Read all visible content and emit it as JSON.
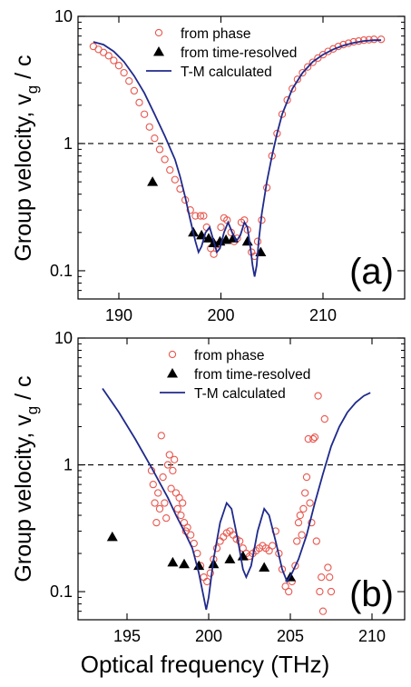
{
  "figure": {
    "ylabel_main": "Group velocity, v",
    "ylabel_sub": "g",
    "ylabel_tail": " / c",
    "xlabel": "Optical frequency (THz)"
  },
  "chart_data": [
    {
      "type": "scatter",
      "panel_label": "(a)",
      "xlim": [
        186,
        218
      ],
      "ylim": [
        0.06,
        10
      ],
      "yscale": "log",
      "x_ticks": [
        190,
        200,
        210
      ],
      "y_ticks": [
        0.1,
        1,
        10
      ],
      "y_tick_labels": [
        "0.1",
        "1",
        "10"
      ],
      "reference_line": 1,
      "legend": {
        "placement": "top-center",
        "entries": [
          "from phase",
          "from time-resolved",
          "T-M calculated"
        ]
      },
      "series": [
        {
          "name": "from phase",
          "marker": "open-circle",
          "color": "#e8584f",
          "points": [
            [
              187.5,
              5.8
            ],
            [
              188,
              5.5
            ],
            [
              188.5,
              5.2
            ],
            [
              189,
              4.9
            ],
            [
              189.5,
              4.5
            ],
            [
              190,
              4.1
            ],
            [
              190.5,
              3.6
            ],
            [
              191,
              3.1
            ],
            [
              191.5,
              2.6
            ],
            [
              192,
              2.1
            ],
            [
              192.5,
              1.7
            ],
            [
              193,
              1.35
            ],
            [
              193.5,
              1.1
            ],
            [
              194,
              0.9
            ],
            [
              194.5,
              0.75
            ],
            [
              195,
              0.62
            ],
            [
              195.5,
              0.52
            ],
            [
              196,
              0.44
            ],
            [
              196.5,
              0.36
            ],
            [
              197,
              0.3
            ],
            [
              197.5,
              0.27
            ],
            [
              198,
              0.27
            ],
            [
              198.3,
              0.27
            ],
            [
              198.6,
              0.22
            ],
            [
              199,
              0.15
            ],
            [
              199.3,
              0.135
            ],
            [
              199.6,
              0.16
            ],
            [
              200,
              0.22
            ],
            [
              200.3,
              0.26
            ],
            [
              200.6,
              0.25
            ],
            [
              201,
              0.2
            ],
            [
              201.3,
              0.17
            ],
            [
              201.6,
              0.18
            ],
            [
              202,
              0.24
            ],
            [
              202.3,
              0.25
            ],
            [
              202.6,
              0.21
            ],
            [
              203,
              0.14
            ],
            [
              203.3,
              0.13
            ],
            [
              203.6,
              0.17
            ],
            [
              204,
              0.25
            ],
            [
              204.5,
              0.45
            ],
            [
              205,
              0.8
            ],
            [
              205.5,
              1.2
            ],
            [
              206,
              1.7
            ],
            [
              206.5,
              2.2
            ],
            [
              207,
              2.7
            ],
            [
              207.5,
              3.2
            ],
            [
              208,
              3.6
            ],
            [
              208.5,
              4
            ],
            [
              209,
              4.35
            ],
            [
              209.5,
              4.7
            ],
            [
              210,
              5
            ],
            [
              210.5,
              5.3
            ],
            [
              211,
              5.55
            ],
            [
              211.5,
              5.8
            ],
            [
              212,
              6
            ],
            [
              212.5,
              6.15
            ],
            [
              213,
              6.3
            ],
            [
              213.5,
              6.4
            ],
            [
              214,
              6.5
            ],
            [
              214.5,
              6.55
            ],
            [
              215,
              6.6
            ],
            [
              215.7,
              6.6
            ]
          ]
        },
        {
          "name": "from time-resolved",
          "marker": "filled-triangle",
          "color": "#000000",
          "points": [
            [
              193.3,
              0.5
            ],
            [
              197.3,
              0.2
            ],
            [
              198.1,
              0.19
            ],
            [
              198.8,
              0.18
            ],
            [
              199.3,
              0.165
            ],
            [
              199.9,
              0.17
            ],
            [
              200.5,
              0.175
            ],
            [
              201.2,
              0.18
            ],
            [
              202.6,
              0.17
            ],
            [
              203.9,
              0.14
            ]
          ]
        },
        {
          "name": "T-M calculated",
          "marker": "line",
          "color": "#1f2a8c",
          "points": [
            [
              187.5,
              6.3
            ],
            [
              188.5,
              6
            ],
            [
              189.5,
              5.3
            ],
            [
              190.5,
              4.4
            ],
            [
              191.5,
              3.4
            ],
            [
              192.5,
              2.5
            ],
            [
              193.5,
              1.7
            ],
            [
              194.5,
              1.15
            ],
            [
              195.5,
              0.75
            ],
            [
              196,
              0.55
            ],
            [
              196.5,
              0.38
            ],
            [
              197,
              0.25
            ],
            [
              197.5,
              0.17
            ],
            [
              197.8,
              0.14
            ],
            [
              198.1,
              0.155
            ],
            [
              198.5,
              0.2
            ],
            [
              198.9,
              0.22
            ],
            [
              199.3,
              0.17
            ],
            [
              199.6,
              0.14
            ],
            [
              199.9,
              0.15
            ],
            [
              200.3,
              0.2
            ],
            [
              200.7,
              0.24
            ],
            [
              201.1,
              0.2
            ],
            [
              201.5,
              0.17
            ],
            [
              201.9,
              0.19
            ],
            [
              202.3,
              0.24
            ],
            [
              202.6,
              0.22
            ],
            [
              202.9,
              0.15
            ],
            [
              203.1,
              0.11
            ],
            [
              203.3,
              0.09
            ],
            [
              203.5,
              0.11
            ],
            [
              203.7,
              0.17
            ],
            [
              204,
              0.28
            ],
            [
              204.5,
              0.5
            ],
            [
              205,
              0.8
            ],
            [
              205.5,
              1.2
            ],
            [
              206,
              1.7
            ],
            [
              207,
              2.7
            ],
            [
              208,
              3.6
            ],
            [
              209,
              4.4
            ],
            [
              210,
              5
            ],
            [
              211,
              5.5
            ],
            [
              212,
              5.9
            ],
            [
              213,
              6.2
            ],
            [
              214,
              6.4
            ],
            [
              215,
              6.5
            ],
            [
              215.7,
              6.5
            ]
          ]
        }
      ]
    },
    {
      "type": "scatter",
      "panel_label": "(b)",
      "xlim": [
        192,
        212
      ],
      "ylim": [
        0.06,
        10
      ],
      "yscale": "log",
      "x_ticks": [
        195,
        200,
        205,
        210
      ],
      "y_ticks": [
        0.1,
        1,
        10
      ],
      "y_tick_labels": [
        "0.1",
        "1",
        "10"
      ],
      "reference_line": 1,
      "legend": {
        "placement": "top-center",
        "entries": [
          "from phase",
          "from time-resolved",
          "T-M calculated"
        ]
      },
      "series": [
        {
          "name": "from phase",
          "marker": "open-circle",
          "color": "#e8584f",
          "points": [
            [
              196.5,
              0.9
            ],
            [
              196.6,
              0.7
            ],
            [
              196.7,
              0.5
            ],
            [
              196.8,
              0.35
            ],
            [
              196.9,
              0.6
            ],
            [
              197,
              0.45
            ],
            [
              197.1,
              1.7
            ],
            [
              197.2,
              0.8
            ],
            [
              197.3,
              0.5
            ],
            [
              197.4,
              0.38
            ],
            [
              197.5,
              1.0
            ],
            [
              197.6,
              1.2
            ],
            [
              197.7,
              0.65
            ],
            [
              197.8,
              0.9
            ],
            [
              197.9,
              1.1
            ],
            [
              198,
              0.6
            ],
            [
              198.1,
              0.45
            ],
            [
              198.2,
              0.55
            ],
            [
              198.3,
              0.4
            ],
            [
              198.4,
              0.5
            ],
            [
              198.5,
              0.35
            ],
            [
              198.6,
              0.3
            ],
            [
              198.7,
              0.32
            ],
            [
              198.9,
              0.28
            ],
            [
              199.1,
              0.24
            ],
            [
              199.3,
              0.2
            ],
            [
              199.5,
              0.16
            ],
            [
              199.7,
              0.13
            ],
            [
              199.9,
              0.12
            ],
            [
              200.1,
              0.14
            ],
            [
              200.3,
              0.18
            ],
            [
              200.5,
              0.22
            ],
            [
              200.7,
              0.25
            ],
            [
              200.9,
              0.27
            ],
            [
              201.1,
              0.29
            ],
            [
              201.3,
              0.3
            ],
            [
              201.5,
              0.28
            ],
            [
              201.7,
              0.26
            ],
            [
              201.9,
              0.25
            ],
            [
              202.1,
              0.22
            ],
            [
              202.3,
              0.2
            ],
            [
              202.5,
              0.19
            ],
            [
              202.7,
              0.2
            ],
            [
              202.9,
              0.21
            ],
            [
              203.1,
              0.22
            ],
            [
              203.3,
              0.23
            ],
            [
              203.5,
              0.22
            ],
            [
              203.7,
              0.21
            ],
            [
              203.9,
              0.23
            ],
            [
              204.1,
              0.3
            ],
            [
              204.3,
              0.2
            ],
            [
              204.5,
              0.15
            ],
            [
              204.7,
              0.11
            ],
            [
              204.9,
              0.1
            ],
            [
              205.1,
              0.12
            ],
            [
              205.3,
              0.16
            ],
            [
              205.4,
              0.25
            ],
            [
              205.5,
              0.35
            ],
            [
              205.6,
              0.4
            ],
            [
              205.7,
              0.28
            ],
            [
              205.8,
              0.45
            ],
            [
              205.9,
              0.6
            ],
            [
              206,
              0.8
            ],
            [
              206.1,
              1.6
            ],
            [
              206.2,
              0.5
            ],
            [
              206.3,
              0.35
            ],
            [
              206.4,
              1.6
            ],
            [
              206.5,
              1.65
            ],
            [
              206.6,
              0.25
            ],
            [
              206.7,
              3.5
            ],
            [
              206.8,
              0.1
            ],
            [
              206.9,
              0.13
            ],
            [
              207.0,
              0.07
            ],
            [
              207.1,
              2.3
            ],
            [
              207.3,
              0.155
            ],
            [
              207.4,
              0.13
            ],
            [
              207.5,
              0.1
            ]
          ]
        },
        {
          "name": "from time-resolved",
          "marker": "filled-triangle",
          "color": "#000000",
          "points": [
            [
              194.1,
              0.27
            ],
            [
              197.8,
              0.17
            ],
            [
              198.5,
              0.165
            ],
            [
              199.4,
              0.16
            ],
            [
              200.3,
              0.165
            ],
            [
              201.3,
              0.18
            ],
            [
              202.1,
              0.19
            ],
            [
              203.4,
              0.155
            ],
            [
              205,
              0.13
            ]
          ]
        },
        {
          "name": "T-M calculated",
          "marker": "line",
          "color": "#1f2a8c",
          "points": [
            [
              193.5,
              4
            ],
            [
              194.5,
              2.6
            ],
            [
              195.5,
              1.6
            ],
            [
              196.5,
              0.95
            ],
            [
              197.5,
              0.55
            ],
            [
              198,
              0.4
            ],
            [
              198.5,
              0.3
            ],
            [
              199,
              0.22
            ],
            [
              199.4,
              0.14
            ],
            [
              199.7,
              0.09
            ],
            [
              199.85,
              0.072
            ],
            [
              200,
              0.09
            ],
            [
              200.3,
              0.18
            ],
            [
              200.7,
              0.35
            ],
            [
              201.1,
              0.5
            ],
            [
              201.4,
              0.45
            ],
            [
              201.8,
              0.25
            ],
            [
              202.1,
              0.15
            ],
            [
              202.3,
              0.13
            ],
            [
              202.6,
              0.16
            ],
            [
              203,
              0.3
            ],
            [
              203.4,
              0.45
            ],
            [
              203.7,
              0.4
            ],
            [
              204.1,
              0.25
            ],
            [
              204.5,
              0.15
            ],
            [
              204.8,
              0.12
            ],
            [
              205.1,
              0.14
            ],
            [
              205.5,
              0.18
            ],
            [
              206,
              0.28
            ],
            [
              206.5,
              0.5
            ],
            [
              207,
              0.85
            ],
            [
              207.5,
              1.4
            ],
            [
              208,
              2
            ],
            [
              208.5,
              2.6
            ],
            [
              209,
              3.1
            ],
            [
              209.5,
              3.5
            ],
            [
              209.9,
              3.7
            ]
          ]
        }
      ]
    }
  ]
}
